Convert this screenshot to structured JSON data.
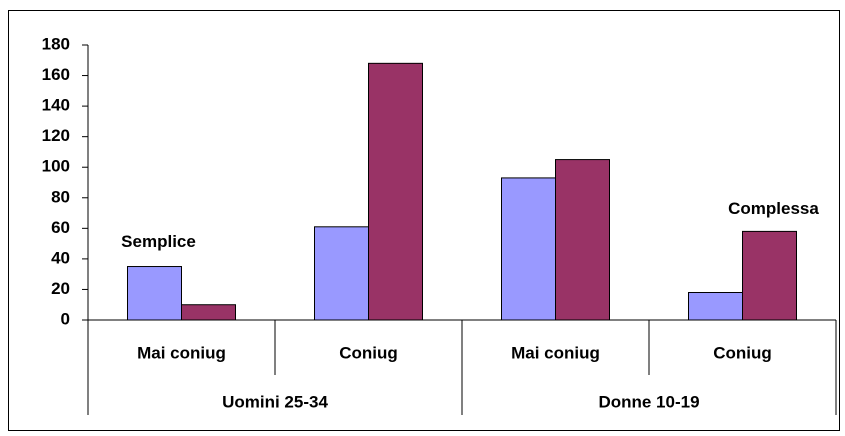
{
  "chart_data": {
    "type": "bar",
    "categories": [
      "Mai coniug",
      "Coniug",
      "Mai coniug",
      "Coniug"
    ],
    "groups": [
      "Uomini 25-34",
      "Donne 10-19"
    ],
    "series": [
      {
        "name": "Semplice",
        "color": "#9999ff",
        "values": [
          35,
          61,
          93,
          18
        ]
      },
      {
        "name": "Complessa",
        "color": "#993366",
        "values": [
          10,
          168,
          105,
          58
        ]
      }
    ],
    "ylim": [
      0,
      180
    ],
    "yticks": [
      0,
      20,
      40,
      60,
      80,
      100,
      120,
      140,
      160,
      180
    ],
    "grid": false
  }
}
